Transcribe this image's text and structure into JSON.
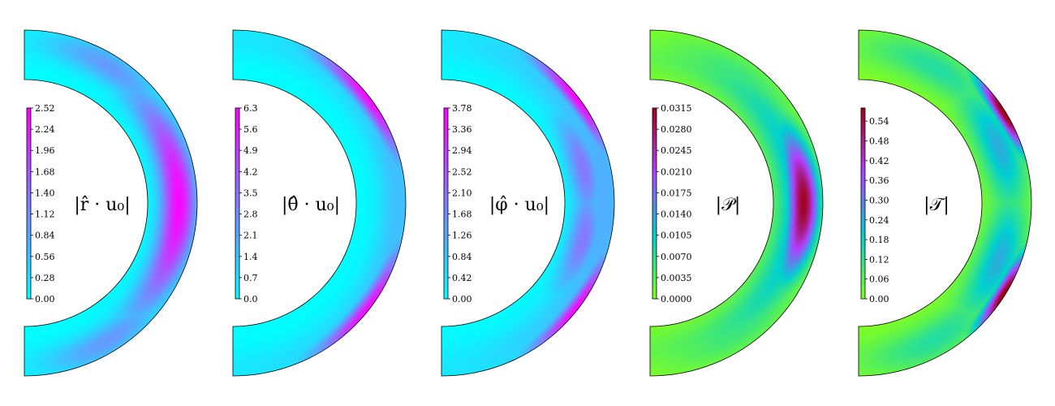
{
  "chart_data": [
    {
      "type": "heatmap",
      "label": "|r̂ · u₀|",
      "colormap": [
        "#00ffff",
        "#ff00ff"
      ],
      "range": [
        0.0,
        2.52
      ],
      "ticks": [
        "0.00",
        "0.28",
        "0.56",
        "0.84",
        "1.12",
        "1.40",
        "1.68",
        "1.96",
        "2.24",
        "2.52"
      ],
      "features": [
        {
          "theta": 0,
          "r": 0.62,
          "value": 2.45,
          "spread_theta": 30,
          "spread_r": 0.25
        },
        {
          "theta": 58,
          "r": 0.75,
          "value": 1.0,
          "spread_theta": 18,
          "spread_r": 0.25
        },
        {
          "theta": -58,
          "r": 0.75,
          "value": 1.0,
          "spread_theta": 18,
          "spread_r": 0.25
        },
        {
          "theta": 30,
          "r": 0.7,
          "value": 0.7,
          "spread_theta": 25,
          "spread_r": 0.3
        },
        {
          "theta": -30,
          "r": 0.7,
          "value": 0.7,
          "spread_theta": 25,
          "spread_r": 0.3
        }
      ]
    },
    {
      "type": "heatmap",
      "label": "|θ̂ · u₀|",
      "colormap": [
        "#00ffff",
        "#ff00ff"
      ],
      "range": [
        0.0,
        6.3
      ],
      "ticks": [
        "0.0",
        "0.7",
        "1.4",
        "2.1",
        "2.8",
        "3.5",
        "4.2",
        "4.9",
        "5.6",
        "6.3"
      ],
      "features": [
        {
          "theta": 38,
          "r": 0.97,
          "value": 6.0,
          "spread_theta": 16,
          "spread_r": 0.16
        },
        {
          "theta": -38,
          "r": 0.97,
          "value": 6.0,
          "spread_theta": 16,
          "spread_r": 0.16
        },
        {
          "theta": 0,
          "r": 0.85,
          "value": 1.6,
          "spread_theta": 60,
          "spread_r": 0.3
        }
      ]
    },
    {
      "type": "heatmap",
      "label": "|φ̂ · u₀|",
      "colormap": [
        "#00ffff",
        "#ff00ff"
      ],
      "range": [
        0.0,
        3.78
      ],
      "ticks": [
        "0.00",
        "0.42",
        "0.84",
        "1.26",
        "1.68",
        "2.10",
        "2.52",
        "2.94",
        "3.36",
        "3.78"
      ],
      "features": [
        {
          "theta": 38,
          "r": 0.97,
          "value": 3.7,
          "spread_theta": 14,
          "spread_r": 0.14
        },
        {
          "theta": -38,
          "r": 0.97,
          "value": 3.7,
          "spread_theta": 14,
          "spread_r": 0.14
        },
        {
          "theta": 14,
          "r": 0.45,
          "value": 2.0,
          "spread_theta": 16,
          "spread_r": 0.22
        },
        {
          "theta": -14,
          "r": 0.45,
          "value": 2.0,
          "spread_theta": 16,
          "spread_r": 0.22
        },
        {
          "theta": 0,
          "r": 0.8,
          "value": 1.2,
          "spread_theta": 55,
          "spread_r": 0.35
        }
      ]
    },
    {
      "type": "heatmap",
      "label": "|𝒫|",
      "colormap": [
        "#80ff20",
        "#00d0d0",
        "#b040ff",
        "#a00018"
      ],
      "range": [
        0.0,
        0.0315
      ],
      "ticks": [
        "0.0000",
        "0.0035",
        "0.0070",
        "0.0105",
        "0.0140",
        "0.0175",
        "0.0210",
        "0.0245",
        "0.0280",
        "0.0315"
      ],
      "features": [
        {
          "theta": 0,
          "r": 0.6,
          "value": 0.031,
          "spread_theta": 20,
          "spread_r": 0.22
        },
        {
          "theta": 0,
          "r": 0.45,
          "value": 0.012,
          "spread_theta": 50,
          "spread_r": 0.3
        },
        {
          "theta": 50,
          "r": 0.6,
          "value": 0.006,
          "spread_theta": 25,
          "spread_r": 0.3
        },
        {
          "theta": -50,
          "r": 0.6,
          "value": 0.006,
          "spread_theta": 25,
          "spread_r": 0.3
        }
      ]
    },
    {
      "type": "heatmap",
      "label": "|𝒯|",
      "colormap": [
        "#80ff20",
        "#00d0d0",
        "#b040ff",
        "#a00018"
      ],
      "range": [
        0.0,
        0.58
      ],
      "ticks": [
        "0.00",
        "0.06",
        "0.12",
        "0.18",
        "0.24",
        "0.30",
        "0.36",
        "0.42",
        "0.48",
        "0.54"
      ],
      "features": [
        {
          "theta": 32,
          "r": 0.98,
          "value": 0.6,
          "spread_theta": 10,
          "spread_r": 0.14
        },
        {
          "theta": -32,
          "r": 0.98,
          "value": 0.6,
          "spread_theta": 10,
          "spread_r": 0.14
        },
        {
          "theta": 22,
          "r": 0.55,
          "value": 0.24,
          "spread_theta": 18,
          "spread_r": 0.3
        },
        {
          "theta": -22,
          "r": 0.55,
          "value": 0.24,
          "spread_theta": 18,
          "spread_r": 0.3
        },
        {
          "theta": 60,
          "r": 0.65,
          "value": 0.14,
          "spread_theta": 20,
          "spread_r": 0.3
        },
        {
          "theta": -60,
          "r": 0.65,
          "value": 0.14,
          "spread_theta": 20,
          "spread_r": 0.3
        }
      ]
    }
  ]
}
